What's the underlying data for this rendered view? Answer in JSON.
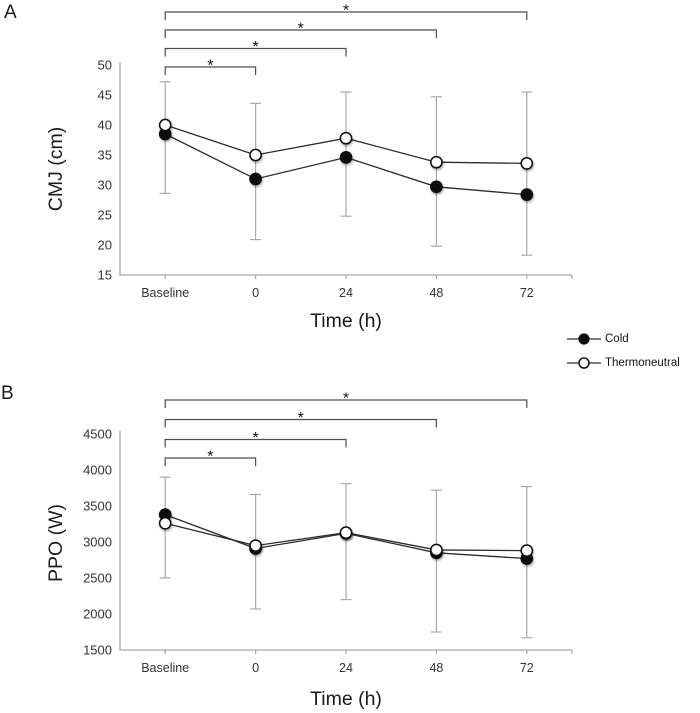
{
  "figure_title": "",
  "panels": [
    {
      "letter": "A"
    },
    {
      "letter": "B"
    }
  ],
  "legend": {
    "items": [
      {
        "label": "Cold",
        "marker": "filled-circle-icon"
      },
      {
        "label": "Thermoneutral",
        "marker": "open-circle-icon"
      }
    ]
  },
  "colors": {
    "series_line": "#2b2b2b",
    "marker_fill": "#0d0d0d",
    "marker_open_fill": "#ffffff",
    "marker_stroke": "#111111",
    "axis": "#a6a6a6",
    "error_bar": "#a9a9a9",
    "bracket": "#4d4d4d",
    "tick_text": "#333333",
    "label_text": "#1a1a1a"
  },
  "chart_data": [
    {
      "panel": "A",
      "type": "line",
      "title": "",
      "categories": [
        "Baseline",
        "0",
        "24",
        "48",
        "72"
      ],
      "series": [
        {
          "name": "Cold",
          "marker": "filled-circle",
          "values": [
            38.5,
            31.0,
            34.6,
            29.7,
            28.4
          ]
        },
        {
          "name": "Thermoneutral",
          "marker": "open-circle",
          "values": [
            40.0,
            35.0,
            37.8,
            33.8,
            33.6
          ]
        }
      ],
      "error_bars": {
        "top": [
          47.2,
          43.6,
          45.5,
          44.7,
          45.5
        ],
        "bottom": [
          28.6,
          20.9,
          24.8,
          19.8,
          18.3
        ]
      },
      "xlabel": "Time (h)",
      "ylabel": "CMJ (cm)",
      "ylim": [
        15,
        50
      ],
      "yticks": [
        50,
        45,
        40,
        35,
        30,
        25,
        20,
        15
      ],
      "grid": false,
      "significance_brackets": [
        {
          "from": "Baseline",
          "to": "0",
          "label": "*"
        },
        {
          "from": "Baseline",
          "to": "24",
          "label": "*"
        },
        {
          "from": "Baseline",
          "to": "48",
          "label": "*"
        },
        {
          "from": "Baseline",
          "to": "72",
          "label": "*"
        }
      ]
    },
    {
      "panel": "B",
      "type": "line",
      "title": "",
      "categories": [
        "Baseline",
        "0",
        "24",
        "48",
        "72"
      ],
      "series": [
        {
          "name": "Cold",
          "marker": "filled-circle",
          "values": [
            3380,
            2910,
            3120,
            2850,
            2770
          ]
        },
        {
          "name": "Thermoneutral",
          "marker": "open-circle",
          "values": [
            3260,
            2950,
            3130,
            2890,
            2880
          ]
        }
      ],
      "error_bars": {
        "top": [
          3900,
          3660,
          3810,
          3720,
          3770
        ],
        "bottom": [
          2500,
          2070,
          2200,
          1750,
          1670
        ]
      },
      "xlabel": "Time (h)",
      "ylabel": "PPO (W)",
      "ylim": [
        1500,
        4500
      ],
      "yticks": [
        4500,
        4000,
        3500,
        3000,
        2500,
        2000,
        1500
      ],
      "grid": false,
      "significance_brackets": [
        {
          "from": "Baseline",
          "to": "0",
          "label": "*"
        },
        {
          "from": "Baseline",
          "to": "24",
          "label": "*"
        },
        {
          "from": "Baseline",
          "to": "48",
          "label": "*"
        },
        {
          "from": "Baseline",
          "to": "72",
          "label": "*"
        }
      ]
    }
  ]
}
